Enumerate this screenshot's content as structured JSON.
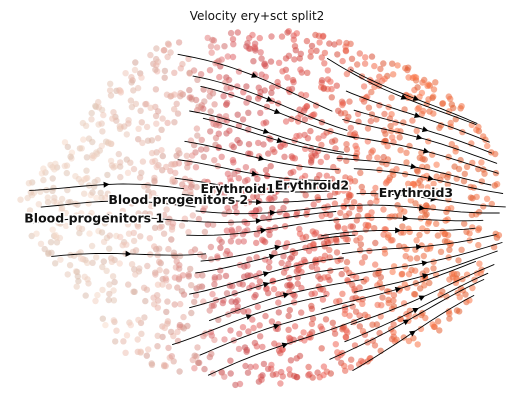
{
  "chart_data": {
    "type": "scatter",
    "title": "Velocity ery+sct split2",
    "xlabel": "",
    "ylabel": "",
    "grid": false,
    "legend": "on data",
    "overlay": "velocity stream arrows",
    "clusters": [
      {
        "name": "Blood progenitors 1",
        "x": 0.17,
        "y": 0.47,
        "color": "#e9cdbd"
      },
      {
        "name": "Blood progenitors 2",
        "x": 0.34,
        "y": 0.52,
        "color": "#dfa49a"
      },
      {
        "name": "Erythroid1",
        "x": 0.46,
        "y": 0.55,
        "color": "#d45a5e"
      },
      {
        "name": "Erythroid2",
        "x": 0.61,
        "y": 0.56,
        "color": "#e0554c"
      },
      {
        "name": "Erythroid3",
        "x": 0.82,
        "y": 0.54,
        "color": "#ee6a3c"
      }
    ]
  }
}
